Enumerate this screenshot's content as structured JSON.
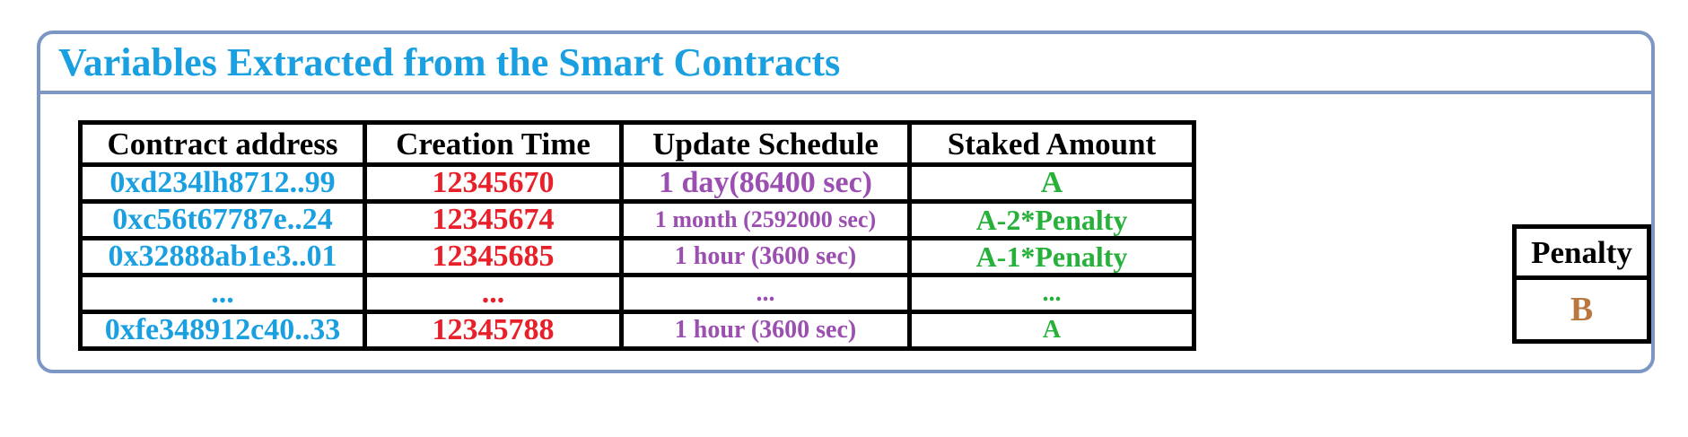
{
  "panel": {
    "title": "Variables Extracted from the Smart Contracts"
  },
  "table": {
    "headers": [
      "Contract address",
      "Creation Time",
      "Update Schedule",
      "Staked Amount"
    ],
    "rows": [
      {
        "address": "0xd234lh8712..99",
        "creation_time": "12345670",
        "update_schedule": "1 day(86400 sec)",
        "staked_amount": "A"
      },
      {
        "address": "0xc56t67787e..24",
        "creation_time": "12345674",
        "update_schedule": "1 month (2592000 sec)",
        "staked_amount": "A-2*Penalty"
      },
      {
        "address": "0x32888ab1e3..01",
        "creation_time": "12345685",
        "update_schedule": "1 hour (3600 sec)",
        "staked_amount": "A-1*Penalty"
      },
      {
        "address": "...",
        "creation_time": "...",
        "update_schedule": "...",
        "staked_amount": "..."
      },
      {
        "address": "0xfe348912c40..33",
        "creation_time": "12345788",
        "update_schedule": "1 hour (3600 sec)",
        "staked_amount": "A"
      }
    ]
  },
  "penalty": {
    "label": "Penalty",
    "value": "B"
  },
  "colors": {
    "border": "#7c97c4",
    "title": "#1aa0e0",
    "address": "#1aa0e0",
    "creation_time": "#e8202a",
    "update_schedule": "#9b4fb0",
    "staked_amount": "#27b13a",
    "penalty_value": "#b87840"
  }
}
